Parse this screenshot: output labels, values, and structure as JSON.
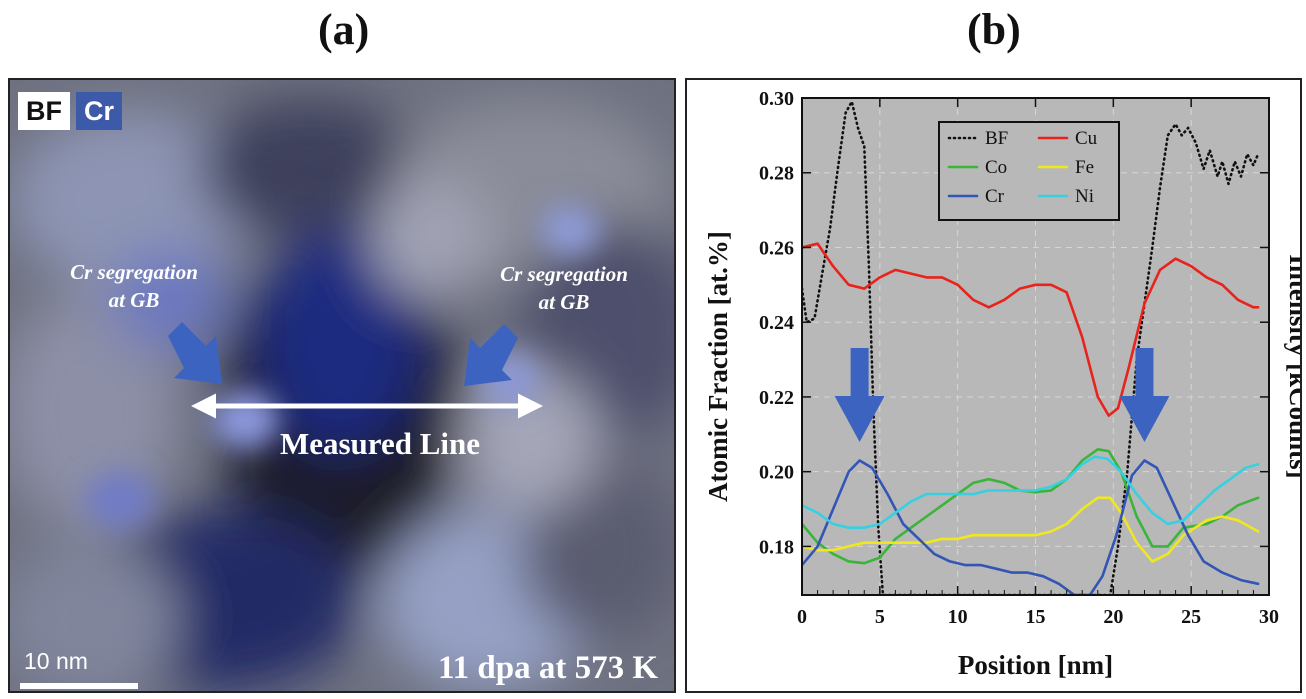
{
  "panels": {
    "a": {
      "title": "(a)",
      "badges": {
        "bf": "BF",
        "cr": "Cr"
      },
      "annotations": {
        "left_line1": "Cr segregation",
        "left_line2": "at GB",
        "right_line1": "Cr segregation",
        "right_line2": "at GB",
        "measured_line": "Measured Line"
      },
      "scale_bar_label": "10 nm",
      "condition": "11 dpa at 573 K"
    },
    "b": {
      "title": "(b)"
    }
  },
  "chart_data": {
    "type": "line",
    "title": "",
    "xlabel": "Position [nm]",
    "ylabel": "Atomic Fraction [at.%]",
    "y2label": "Intensity [kCounts]",
    "xlim": [
      0,
      30
    ],
    "ylim": [
      0.167,
      0.3
    ],
    "x_ticks": [
      "0",
      "5",
      "10",
      "15",
      "20",
      "25",
      "30"
    ],
    "y_ticks": [
      "0.18",
      "0.20",
      "0.22",
      "0.24",
      "0.26",
      "0.28",
      "0.30"
    ],
    "grid": true,
    "legend_position": "top-center",
    "background_color": "#b8b8b8",
    "series": [
      {
        "name": "BF",
        "color": "#111111",
        "style": "dotted",
        "points": [
          [
            0,
            0.249
          ],
          [
            0.3,
            0.24
          ],
          [
            0.8,
            0.241
          ],
          [
            1.3,
            0.253
          ],
          [
            1.8,
            0.265
          ],
          [
            2.3,
            0.281
          ],
          [
            2.8,
            0.296
          ],
          [
            3.2,
            0.299
          ],
          [
            3.6,
            0.292
          ],
          [
            4.0,
            0.287
          ],
          [
            4.3,
            0.255
          ],
          [
            4.6,
            0.215
          ],
          [
            4.9,
            0.185
          ],
          [
            5.2,
            0.167
          ],
          [
            19.8,
            0.167
          ],
          [
            20.3,
            0.18
          ],
          [
            20.9,
            0.2
          ],
          [
            21.5,
            0.23
          ],
          [
            22.0,
            0.245
          ],
          [
            22.5,
            0.26
          ],
          [
            23.0,
            0.276
          ],
          [
            23.5,
            0.29
          ],
          [
            24.0,
            0.293
          ],
          [
            24.4,
            0.29
          ],
          [
            24.8,
            0.292
          ],
          [
            25.3,
            0.288
          ],
          [
            25.8,
            0.281
          ],
          [
            26.2,
            0.286
          ],
          [
            26.7,
            0.279
          ],
          [
            27.0,
            0.283
          ],
          [
            27.4,
            0.277
          ],
          [
            27.8,
            0.283
          ],
          [
            28.2,
            0.279
          ],
          [
            28.6,
            0.285
          ],
          [
            29.0,
            0.282
          ],
          [
            29.3,
            0.285
          ]
        ]
      },
      {
        "name": "Cu",
        "color": "#e8231c",
        "style": "solid",
        "points": [
          [
            0,
            0.26
          ],
          [
            1,
            0.261
          ],
          [
            2,
            0.255
          ],
          [
            3,
            0.25
          ],
          [
            4,
            0.249
          ],
          [
            5,
            0.252
          ],
          [
            6,
            0.254
          ],
          [
            7,
            0.253
          ],
          [
            8,
            0.252
          ],
          [
            9,
            0.252
          ],
          [
            10,
            0.25
          ],
          [
            11,
            0.246
          ],
          [
            12,
            0.244
          ],
          [
            13,
            0.246
          ],
          [
            14,
            0.249
          ],
          [
            15,
            0.25
          ],
          [
            16,
            0.25
          ],
          [
            17,
            0.248
          ],
          [
            18,
            0.236
          ],
          [
            19,
            0.22
          ],
          [
            19.7,
            0.215
          ],
          [
            20.3,
            0.217
          ],
          [
            21,
            0.228
          ],
          [
            22,
            0.245
          ],
          [
            23,
            0.254
          ],
          [
            24,
            0.257
          ],
          [
            25,
            0.255
          ],
          [
            26,
            0.252
          ],
          [
            27,
            0.25
          ],
          [
            28,
            0.246
          ],
          [
            29,
            0.244
          ],
          [
            29.3,
            0.244
          ]
        ]
      },
      {
        "name": "Co",
        "color": "#3ab53a",
        "style": "solid",
        "points": [
          [
            0,
            0.186
          ],
          [
            1,
            0.181
          ],
          [
            2,
            0.178
          ],
          [
            3,
            0.176
          ],
          [
            4,
            0.1755
          ],
          [
            5,
            0.177
          ],
          [
            6,
            0.182
          ],
          [
            7,
            0.185
          ],
          [
            8,
            0.188
          ],
          [
            9,
            0.191
          ],
          [
            10,
            0.194
          ],
          [
            11,
            0.197
          ],
          [
            12,
            0.198
          ],
          [
            13,
            0.197
          ],
          [
            14,
            0.195
          ],
          [
            15,
            0.1945
          ],
          [
            16,
            0.195
          ],
          [
            17,
            0.198
          ],
          [
            18,
            0.203
          ],
          [
            19,
            0.206
          ],
          [
            19.7,
            0.2055
          ],
          [
            20.5,
            0.2
          ],
          [
            21.5,
            0.188
          ],
          [
            22.5,
            0.18
          ],
          [
            23.5,
            0.18
          ],
          [
            24.5,
            0.185
          ],
          [
            26,
            0.186
          ],
          [
            27,
            0.188
          ],
          [
            28,
            0.191
          ],
          [
            29.3,
            0.193
          ]
        ]
      },
      {
        "name": "Fe",
        "color": "#f0e81e",
        "style": "solid",
        "points": [
          [
            0,
            0.18
          ],
          [
            1,
            0.179
          ],
          [
            2,
            0.179
          ],
          [
            3,
            0.18
          ],
          [
            4,
            0.181
          ],
          [
            5,
            0.181
          ],
          [
            6,
            0.181
          ],
          [
            7,
            0.181
          ],
          [
            8,
            0.181
          ],
          [
            9,
            0.182
          ],
          [
            10,
            0.182
          ],
          [
            11,
            0.183
          ],
          [
            12,
            0.183
          ],
          [
            13,
            0.183
          ],
          [
            14,
            0.183
          ],
          [
            15,
            0.183
          ],
          [
            16,
            0.184
          ],
          [
            17,
            0.186
          ],
          [
            18,
            0.19
          ],
          [
            19,
            0.193
          ],
          [
            19.8,
            0.193
          ],
          [
            20.5,
            0.189
          ],
          [
            21.5,
            0.181
          ],
          [
            22.5,
            0.176
          ],
          [
            23.5,
            0.178
          ],
          [
            24.5,
            0.183
          ],
          [
            26,
            0.187
          ],
          [
            27,
            0.188
          ],
          [
            28,
            0.187
          ],
          [
            29.3,
            0.184
          ]
        ]
      },
      {
        "name": "Cr",
        "color": "#3355b5",
        "style": "solid",
        "points": [
          [
            0,
            0.175
          ],
          [
            1,
            0.18
          ],
          [
            2,
            0.19
          ],
          [
            3,
            0.2
          ],
          [
            3.7,
            0.203
          ],
          [
            4.5,
            0.201
          ],
          [
            5.5,
            0.194
          ],
          [
            6.5,
            0.186
          ],
          [
            7.5,
            0.182
          ],
          [
            8.5,
            0.178
          ],
          [
            9.5,
            0.176
          ],
          [
            10.5,
            0.175
          ],
          [
            11.5,
            0.175
          ],
          [
            12.5,
            0.174
          ],
          [
            13.5,
            0.173
          ],
          [
            14.5,
            0.173
          ],
          [
            15.5,
            0.172
          ],
          [
            16.5,
            0.17
          ],
          [
            17.5,
            0.167
          ],
          [
            18.5,
            0.167
          ],
          [
            19.3,
            0.172
          ],
          [
            20.2,
            0.183
          ],
          [
            21.2,
            0.199
          ],
          [
            22.0,
            0.203
          ],
          [
            22.8,
            0.201
          ],
          [
            23.8,
            0.192
          ],
          [
            24.8,
            0.183
          ],
          [
            25.8,
            0.176
          ],
          [
            27,
            0.173
          ],
          [
            28.2,
            0.171
          ],
          [
            29.3,
            0.17
          ]
        ]
      },
      {
        "name": "Ni",
        "color": "#37d0e0",
        "style": "solid",
        "points": [
          [
            0,
            0.191
          ],
          [
            1,
            0.189
          ],
          [
            2,
            0.186
          ],
          [
            3,
            0.185
          ],
          [
            4,
            0.185
          ],
          [
            5,
            0.186
          ],
          [
            6,
            0.189
          ],
          [
            7,
            0.192
          ],
          [
            8,
            0.194
          ],
          [
            9,
            0.194
          ],
          [
            10,
            0.194
          ],
          [
            11,
            0.194
          ],
          [
            12,
            0.195
          ],
          [
            13,
            0.195
          ],
          [
            14,
            0.195
          ],
          [
            15,
            0.195
          ],
          [
            16,
            0.196
          ],
          [
            17,
            0.198
          ],
          [
            18,
            0.202
          ],
          [
            18.8,
            0.204
          ],
          [
            19.6,
            0.2035
          ],
          [
            20.5,
            0.2
          ],
          [
            21.5,
            0.194
          ],
          [
            22.5,
            0.189
          ],
          [
            23.5,
            0.186
          ],
          [
            24.5,
            0.187
          ],
          [
            25.5,
            0.191
          ],
          [
            26.5,
            0.195
          ],
          [
            27.5,
            0.198
          ],
          [
            28.5,
            0.201
          ],
          [
            29.3,
            0.202
          ]
        ]
      }
    ],
    "annotations": [
      {
        "type": "arrow",
        "x": 3.7,
        "color": "#3d63c0"
      },
      {
        "type": "arrow",
        "x": 22.0,
        "color": "#3d63c0"
      }
    ]
  }
}
